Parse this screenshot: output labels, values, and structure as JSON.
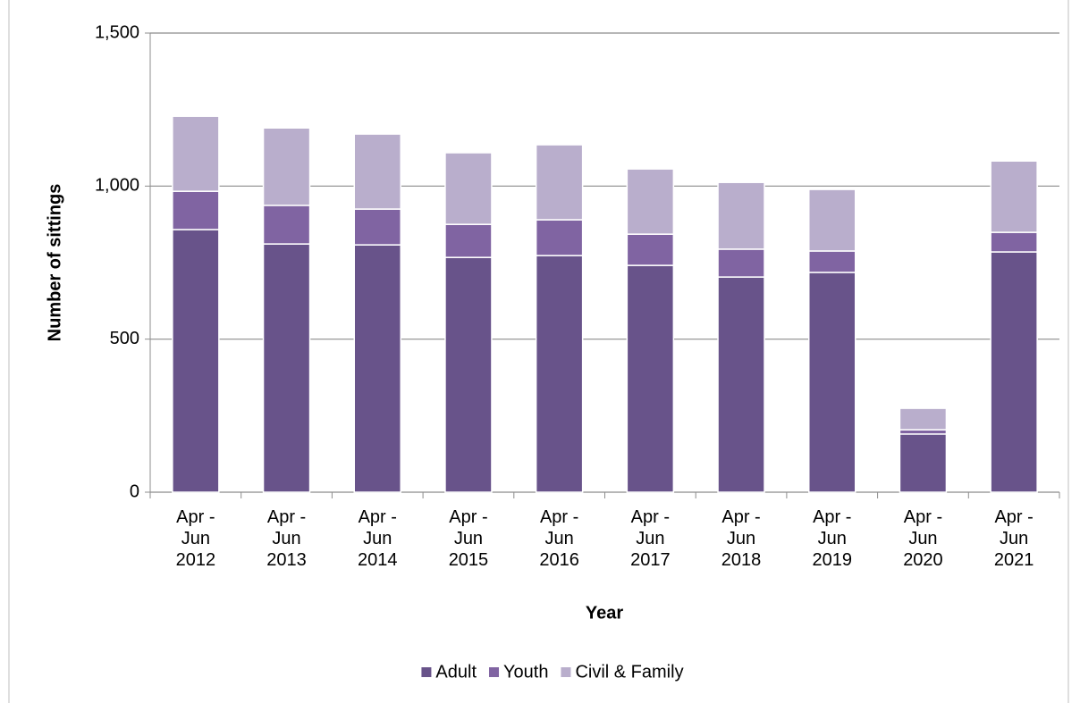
{
  "chart_data": {
    "type": "stacked_bar",
    "x_label": "Year",
    "y_label": "Number of sittings",
    "categories": [
      "Apr - Jun 2012",
      "Apr - Jun 2013",
      "Apr - Jun 2014",
      "Apr - Jun 2015",
      "Apr - Jun 2016",
      "Apr - Jun 2017",
      "Apr - Jun 2018",
      "Apr - Jun 2019",
      "Apr - Jun 2020",
      "Apr - Jun 2021"
    ],
    "series": [
      {
        "name": "Adult",
        "color": "#68538a",
        "values": [
          858,
          811,
          808,
          767,
          773,
          741,
          703,
          718,
          190,
          785
        ]
      },
      {
        "name": "Youth",
        "color": "#8064a2",
        "values": [
          125,
          126,
          117,
          108,
          117,
          102,
          91,
          70,
          14,
          64
        ]
      },
      {
        "name": "Civil & Family",
        "color": "#b9aecc",
        "values": [
          245,
          253,
          245,
          234,
          245,
          213,
          218,
          201,
          70,
          233
        ]
      }
    ],
    "ylim": [
      0,
      1500
    ],
    "yticks": [
      0,
      500,
      {
        "value": 1000,
        "label": "1,000"
      },
      {
        "value": 1500,
        "label": "1,500"
      }
    ],
    "grid": true,
    "legend": "bottom"
  }
}
